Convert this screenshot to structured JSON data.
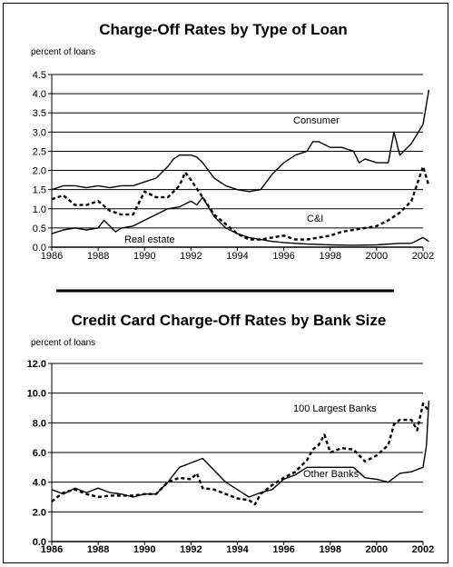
{
  "chart_data": [
    {
      "type": "line",
      "title": "Charge-Off Rates by Type of Loan",
      "unit_label": "percent of loans",
      "xlim": [
        1986,
        2002
      ],
      "ylim": [
        0,
        4.5
      ],
      "x_ticks": [
        "1986",
        "1988",
        "1990",
        "1992",
        "1994",
        "1996",
        "1998",
        "2000",
        "2002"
      ],
      "y_ticks": [
        "0.0",
        "0.5",
        "1.0",
        "1.5",
        "2.0",
        "2.5",
        "3.0",
        "3.5",
        "4.0",
        "4.5"
      ],
      "grid": true,
      "series": [
        {
          "name": "Consumer",
          "style": "solid",
          "points": [
            [
              1986,
              1.5
            ],
            [
              1986.5,
              1.6
            ],
            [
              1987,
              1.6
            ],
            [
              1987.5,
              1.55
            ],
            [
              1988,
              1.6
            ],
            [
              1988.5,
              1.55
            ],
            [
              1989,
              1.6
            ],
            [
              1989.5,
              1.6
            ],
            [
              1990,
              1.7
            ],
            [
              1990.5,
              1.8
            ],
            [
              1991,
              2.1
            ],
            [
              1991.25,
              2.3
            ],
            [
              1991.5,
              2.4
            ],
            [
              1992,
              2.4
            ],
            [
              1992.25,
              2.35
            ],
            [
              1992.5,
              2.2
            ],
            [
              1993,
              1.8
            ],
            [
              1993.5,
              1.6
            ],
            [
              1994,
              1.5
            ],
            [
              1994.5,
              1.45
            ],
            [
              1995,
              1.5
            ],
            [
              1995.5,
              1.9
            ],
            [
              1996,
              2.2
            ],
            [
              1996.5,
              2.4
            ],
            [
              1997,
              2.5
            ],
            [
              1997.25,
              2.75
            ],
            [
              1997.5,
              2.75
            ],
            [
              1998,
              2.6
            ],
            [
              1998.5,
              2.6
            ],
            [
              1999,
              2.5
            ],
            [
              1999.25,
              2.2
            ],
            [
              1999.5,
              2.3
            ],
            [
              2000,
              2.2
            ],
            [
              2000.5,
              2.2
            ],
            [
              2000.75,
              3.0
            ],
            [
              2001,
              2.4
            ],
            [
              2001.5,
              2.7
            ],
            [
              2002,
              3.2
            ],
            [
              2002.25,
              4.1
            ]
          ]
        },
        {
          "name": "C&I",
          "style": "dashed",
          "points": [
            [
              1986,
              1.25
            ],
            [
              1986.5,
              1.35
            ],
            [
              1987,
              1.1
            ],
            [
              1987.5,
              1.1
            ],
            [
              1988,
              1.2
            ],
            [
              1988.5,
              0.95
            ],
            [
              1989,
              0.85
            ],
            [
              1989.5,
              0.85
            ],
            [
              1990,
              1.45
            ],
            [
              1990.5,
              1.3
            ],
            [
              1991,
              1.3
            ],
            [
              1991.5,
              1.6
            ],
            [
              1991.75,
              1.95
            ],
            [
              1992,
              1.75
            ],
            [
              1992.5,
              1.3
            ],
            [
              1993,
              0.85
            ],
            [
              1993.5,
              0.6
            ],
            [
              1994,
              0.35
            ],
            [
              1994.5,
              0.2
            ],
            [
              1995,
              0.2
            ],
            [
              1995.5,
              0.25
            ],
            [
              1996,
              0.3
            ],
            [
              1996.5,
              0.2
            ],
            [
              1997,
              0.2
            ],
            [
              1997.5,
              0.25
            ],
            [
              1998,
              0.3
            ],
            [
              1998.5,
              0.4
            ],
            [
              1999,
              0.45
            ],
            [
              1999.5,
              0.5
            ],
            [
              2000,
              0.55
            ],
            [
              2000.5,
              0.7
            ],
            [
              2001,
              0.9
            ],
            [
              2001.5,
              1.2
            ],
            [
              2002,
              2.1
            ],
            [
              2002.25,
              1.6
            ]
          ]
        },
        {
          "name": "Real estate",
          "style": "solid",
          "points": [
            [
              1986,
              0.35
            ],
            [
              1986.5,
              0.45
            ],
            [
              1987,
              0.5
            ],
            [
              1987.5,
              0.45
            ],
            [
              1988,
              0.5
            ],
            [
              1988.25,
              0.7
            ],
            [
              1988.5,
              0.55
            ],
            [
              1988.75,
              0.4
            ],
            [
              1989,
              0.5
            ],
            [
              1989.5,
              0.55
            ],
            [
              1990,
              0.7
            ],
            [
              1990.5,
              0.85
            ],
            [
              1991,
              1.0
            ],
            [
              1991.5,
              1.05
            ],
            [
              1992,
              1.2
            ],
            [
              1992.25,
              1.1
            ],
            [
              1992.5,
              1.3
            ],
            [
              1993,
              0.8
            ],
            [
              1993.5,
              0.5
            ],
            [
              1994,
              0.35
            ],
            [
              1994.5,
              0.25
            ],
            [
              1995,
              0.2
            ],
            [
              1995.5,
              0.15
            ],
            [
              1996,
              0.12
            ],
            [
              1996.5,
              0.1
            ],
            [
              1997,
              0.08
            ],
            [
              1998,
              0.06
            ],
            [
              1999,
              0.05
            ],
            [
              2000,
              0.06
            ],
            [
              2001,
              0.1
            ],
            [
              2001.5,
              0.1
            ],
            [
              2002,
              0.25
            ],
            [
              2002.25,
              0.15
            ]
          ]
        }
      ],
      "annotations": [
        "Consumer",
        "C&I",
        "Real estate"
      ]
    },
    {
      "type": "line",
      "title": "Credit Card Charge-Off Rates by Bank Size",
      "unit_label": "percent of loans",
      "xlim": [
        1986,
        2002
      ],
      "ylim": [
        0,
        12
      ],
      "x_ticks": [
        "1986",
        "1988",
        "1990",
        "1992",
        "1994",
        "1996",
        "1998",
        "2000",
        "2002"
      ],
      "y_ticks": [
        "0.0",
        "2.0",
        "4.0",
        "6.0",
        "8.0",
        "10.0",
        "12.0"
      ],
      "grid": true,
      "series": [
        {
          "name": "100 Largest Banks",
          "style": "dashed",
          "points": [
            [
              1986,
              2.7
            ],
            [
              1986.5,
              3.3
            ],
            [
              1987,
              3.5
            ],
            [
              1987.5,
              3.2
            ],
            [
              1988,
              3.0
            ],
            [
              1988.5,
              3.1
            ],
            [
              1989,
              3.1
            ],
            [
              1989.5,
              3.1
            ],
            [
              1990,
              3.2
            ],
            [
              1990.5,
              3.2
            ],
            [
              1991,
              4.0
            ],
            [
              1991.5,
              4.3
            ],
            [
              1992,
              4.2
            ],
            [
              1992.25,
              4.6
            ],
            [
              1992.5,
              3.6
            ],
            [
              1993,
              3.5
            ],
            [
              1993.5,
              3.2
            ],
            [
              1994,
              2.9
            ],
            [
              1994.5,
              2.8
            ],
            [
              1994.75,
              2.5
            ],
            [
              1995,
              3.2
            ],
            [
              1995.5,
              3.8
            ],
            [
              1996,
              4.3
            ],
            [
              1996.5,
              4.7
            ],
            [
              1997,
              5.5
            ],
            [
              1997.25,
              6.2
            ],
            [
              1997.5,
              6.5
            ],
            [
              1997.75,
              7.2
            ],
            [
              1998,
              6.0
            ],
            [
              1998.5,
              6.3
            ],
            [
              1999,
              6.2
            ],
            [
              1999.5,
              5.4
            ],
            [
              2000,
              5.8
            ],
            [
              2000.5,
              6.5
            ],
            [
              2000.75,
              7.9
            ],
            [
              2001,
              8.2
            ],
            [
              2001.5,
              8.2
            ],
            [
              2001.75,
              7.5
            ],
            [
              2002,
              9.3
            ],
            [
              2002.25,
              8.8
            ]
          ]
        },
        {
          "name": "Other Banks",
          "style": "solid",
          "points": [
            [
              1986,
              3.5
            ],
            [
              1986.5,
              3.2
            ],
            [
              1987,
              3.6
            ],
            [
              1987.5,
              3.3
            ],
            [
              1988,
              3.6
            ],
            [
              1988.5,
              3.3
            ],
            [
              1989,
              3.2
            ],
            [
              1989.5,
              3.0
            ],
            [
              1990,
              3.2
            ],
            [
              1990.5,
              3.2
            ],
            [
              1991,
              4.0
            ],
            [
              1991.5,
              5.0
            ],
            [
              1992,
              5.3
            ],
            [
              1992.5,
              5.6
            ],
            [
              1993,
              4.8
            ],
            [
              1993.5,
              4.0
            ],
            [
              1994,
              3.5
            ],
            [
              1994.5,
              3.0
            ],
            [
              1995,
              3.3
            ],
            [
              1995.5,
              3.5
            ],
            [
              1996,
              4.2
            ],
            [
              1996.5,
              4.5
            ],
            [
              1997,
              5.0
            ],
            [
              1997.5,
              5.0
            ],
            [
              1998,
              5.0
            ],
            [
              1998.5,
              5.0
            ],
            [
              1999,
              5.0
            ],
            [
              1999.5,
              4.3
            ],
            [
              2000,
              4.2
            ],
            [
              2000.5,
              4.0
            ],
            [
              2001,
              4.6
            ],
            [
              2001.5,
              4.7
            ],
            [
              2002,
              5.0
            ],
            [
              2002.15,
              6.5
            ],
            [
              2002.25,
              9.5
            ]
          ]
        }
      ],
      "annotations": [
        "100 Largest Banks",
        "Other Banks"
      ]
    }
  ]
}
